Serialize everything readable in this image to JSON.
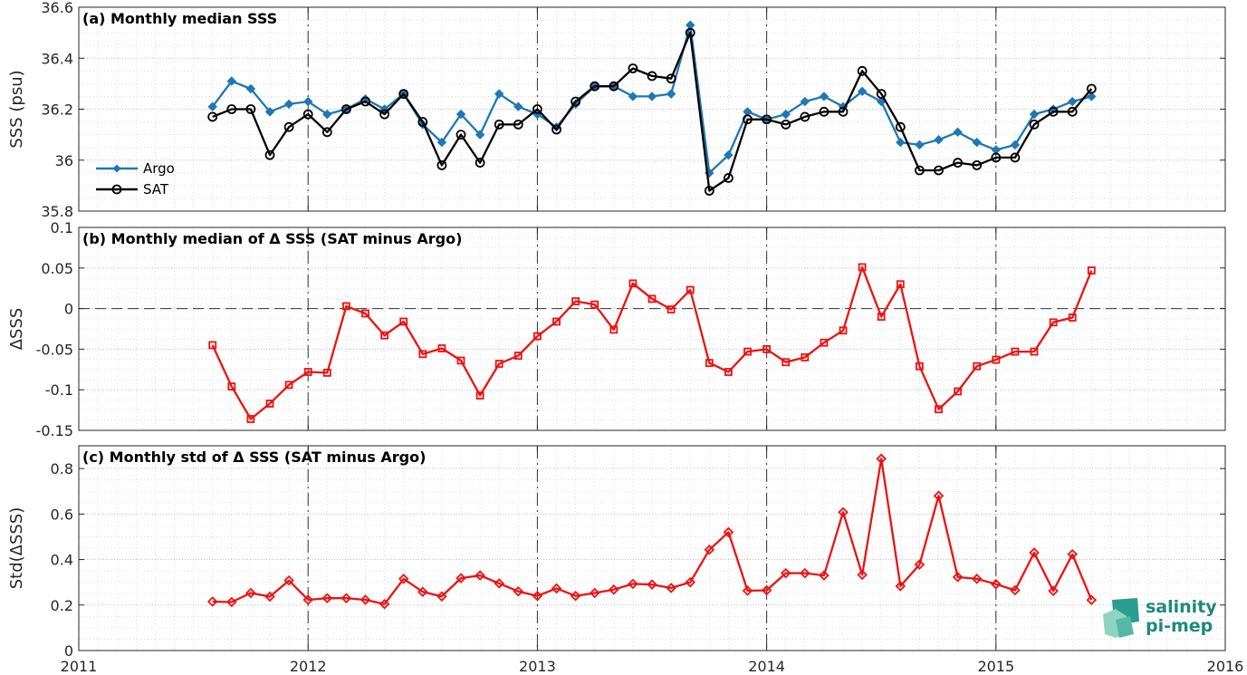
{
  "figure": {
    "logo": {
      "line1": "salinity",
      "line2": "pi-mep"
    },
    "x_ticks": [
      "2011",
      "2012",
      "2013",
      "2014",
      "2015",
      "2016"
    ]
  },
  "colors": {
    "argo": "#1f77b4",
    "sat": "#000000",
    "delta": "#ee1111",
    "logo": "#1e8a7a"
  },
  "chart_data": [
    {
      "type": "line",
      "title": "(a) Monthly median SSS",
      "xlabel": "",
      "ylabel": "SSS (psu)",
      "xlim": [
        2011,
        2016
      ],
      "ylim": [
        35.8,
        36.6
      ],
      "yticks": [
        35.8,
        36,
        36.2,
        36.4,
        36.6
      ],
      "ytick_labels": [
        "35.8",
        "36",
        "36.2",
        "36.4",
        "36.6"
      ],
      "grid": true,
      "legend": "left",
      "x": [
        "2011-08",
        "2011-09",
        "2011-10",
        "2011-11",
        "2011-12",
        "2012-01",
        "2012-02",
        "2012-03",
        "2012-04",
        "2012-05",
        "2012-06",
        "2012-07",
        "2012-08",
        "2012-09",
        "2012-10",
        "2012-11",
        "2012-12",
        "2013-01",
        "2013-02",
        "2013-03",
        "2013-04",
        "2013-05",
        "2013-06",
        "2013-07",
        "2013-08",
        "2013-09",
        "2013-10",
        "2013-11",
        "2013-12",
        "2014-01",
        "2014-02",
        "2014-03",
        "2014-04",
        "2014-05",
        "2014-06",
        "2014-07",
        "2014-08",
        "2014-09",
        "2014-10",
        "2014-11",
        "2014-12",
        "2015-01",
        "2015-02",
        "2015-03",
        "2015-04",
        "2015-05",
        "2015-06"
      ],
      "series": [
        {
          "name": "Argo",
          "marker": "diamond",
          "values": [
            36.21,
            36.31,
            36.28,
            36.19,
            36.22,
            36.23,
            36.18,
            36.2,
            36.24,
            36.2,
            36.26,
            36.14,
            36.07,
            36.18,
            36.1,
            36.26,
            36.21,
            36.18,
            36.13,
            36.22,
            36.29,
            36.29,
            36.25,
            36.25,
            36.26,
            36.53,
            35.95,
            36.02,
            36.19,
            36.16,
            36.18,
            36.23,
            36.25,
            36.21,
            36.27,
            36.23,
            36.07,
            36.06,
            36.08,
            36.11,
            36.07,
            36.04,
            36.06,
            36.18,
            36.2,
            36.23,
            36.25
          ]
        },
        {
          "name": "SAT",
          "marker": "circle",
          "values": [
            36.17,
            36.2,
            36.2,
            36.02,
            36.13,
            36.18,
            36.11,
            36.2,
            36.23,
            36.18,
            36.26,
            36.15,
            35.98,
            36.1,
            35.99,
            36.14,
            36.14,
            36.2,
            36.12,
            36.23,
            36.29,
            36.29,
            36.36,
            36.33,
            36.32,
            36.5,
            35.88,
            35.93,
            36.16,
            36.16,
            36.14,
            36.17,
            36.19,
            36.19,
            36.35,
            36.26,
            36.13,
            35.96,
            35.96,
            35.99,
            35.98,
            36.01,
            36.01,
            36.14,
            36.19,
            36.19,
            36.28
          ]
        }
      ]
    },
    {
      "type": "line",
      "title": "(b) Monthly median of Δ SSS (SAT minus Argo)",
      "xlabel": "",
      "ylabel": "ΔSSS",
      "xlim": [
        2011,
        2016
      ],
      "ylim": [
        -0.15,
        0.1
      ],
      "yticks": [
        -0.15,
        -0.1,
        -0.05,
        0,
        0.05,
        0.1
      ],
      "ytick_labels": [
        "-0.15",
        "-0.1",
        "-0.05",
        "0",
        "0.05",
        "0.1"
      ],
      "grid": true,
      "x": [
        "2011-08",
        "2011-09",
        "2011-10",
        "2011-11",
        "2011-12",
        "2012-01",
        "2012-02",
        "2012-03",
        "2012-04",
        "2012-05",
        "2012-06",
        "2012-07",
        "2012-08",
        "2012-09",
        "2012-10",
        "2012-11",
        "2012-12",
        "2013-01",
        "2013-02",
        "2013-03",
        "2013-04",
        "2013-05",
        "2013-06",
        "2013-07",
        "2013-08",
        "2013-09",
        "2013-10",
        "2013-11",
        "2013-12",
        "2014-01",
        "2014-02",
        "2014-03",
        "2014-04",
        "2014-05",
        "2014-06",
        "2014-07",
        "2014-08",
        "2014-09",
        "2014-10",
        "2014-11",
        "2014-12",
        "2015-01",
        "2015-02",
        "2015-03",
        "2015-04",
        "2015-05",
        "2015-06"
      ],
      "series": [
        {
          "marker": "square",
          "values": [
            -0.045,
            -0.096,
            -0.136,
            -0.117,
            -0.094,
            -0.078,
            -0.079,
            0.003,
            -0.006,
            -0.033,
            -0.016,
            -0.056,
            -0.049,
            -0.064,
            -0.107,
            -0.068,
            -0.058,
            -0.034,
            -0.016,
            0.009,
            0.005,
            -0.026,
            0.031,
            0.012,
            -0.001,
            0.023,
            -0.067,
            -0.078,
            -0.053,
            -0.05,
            -0.066,
            -0.06,
            -0.042,
            -0.027,
            0.051,
            -0.01,
            0.03,
            -0.071,
            -0.124,
            -0.102,
            -0.071,
            -0.063,
            -0.053,
            -0.053,
            -0.017,
            -0.011,
            0.047
          ]
        }
      ]
    },
    {
      "type": "line",
      "title": "(c) Monthly std of Δ SSS (SAT minus Argo)",
      "xlabel": "",
      "ylabel": "Std(ΔSSS)",
      "xlim": [
        2011,
        2016
      ],
      "ylim": [
        0,
        0.9
      ],
      "yticks": [
        0,
        0.2,
        0.4,
        0.6,
        0.8
      ],
      "ytick_labels": [
        "0",
        "0.2",
        "0.4",
        "0.6",
        "0.8"
      ],
      "grid": true,
      "x": [
        "2011-08",
        "2011-09",
        "2011-10",
        "2011-11",
        "2011-12",
        "2012-01",
        "2012-02",
        "2012-03",
        "2012-04",
        "2012-05",
        "2012-06",
        "2012-07",
        "2012-08",
        "2012-09",
        "2012-10",
        "2012-11",
        "2012-12",
        "2013-01",
        "2013-02",
        "2013-03",
        "2013-04",
        "2013-05",
        "2013-06",
        "2013-07",
        "2013-08",
        "2013-09",
        "2013-10",
        "2013-11",
        "2013-12",
        "2014-01",
        "2014-02",
        "2014-03",
        "2014-04",
        "2014-05",
        "2014-06",
        "2014-07",
        "2014-08",
        "2014-09",
        "2014-10",
        "2014-11",
        "2014-12",
        "2015-01",
        "2015-02",
        "2015-03",
        "2015-04",
        "2015-05",
        "2015-06"
      ],
      "series": [
        {
          "marker": "diamond",
          "values": [
            0.215,
            0.213,
            0.253,
            0.237,
            0.308,
            0.223,
            0.23,
            0.23,
            0.223,
            0.204,
            0.315,
            0.258,
            0.238,
            0.318,
            0.33,
            0.295,
            0.26,
            0.24,
            0.273,
            0.24,
            0.253,
            0.268,
            0.293,
            0.29,
            0.275,
            0.3,
            0.443,
            0.52,
            0.263,
            0.265,
            0.34,
            0.34,
            0.33,
            0.608,
            0.333,
            0.843,
            0.283,
            0.378,
            0.68,
            0.323,
            0.315,
            0.292,
            0.265,
            0.43,
            0.262,
            0.423,
            0.222
          ]
        }
      ]
    }
  ]
}
